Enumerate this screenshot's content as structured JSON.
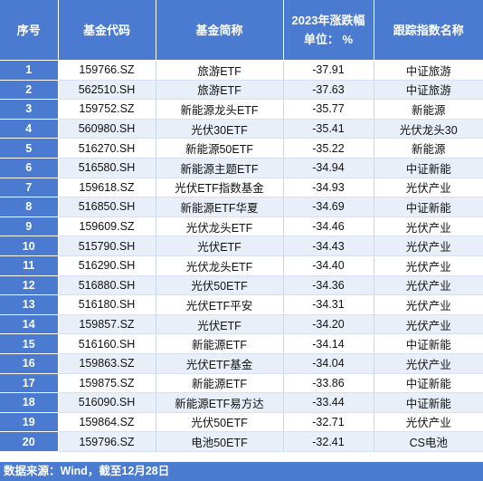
{
  "headers": {
    "index": "序号",
    "code": "基金代码",
    "name": "基金简称",
    "change_line1": "2023年涨跌幅",
    "change_line2": "单位： %",
    "index_name": "跟踪指数名称"
  },
  "rows": [
    {
      "no": "1",
      "code": "159766.SZ",
      "name": "旅游ETF",
      "change": "-37.91",
      "index": "中证旅游"
    },
    {
      "no": "2",
      "code": "562510.SH",
      "name": "旅游ETF",
      "change": "-37.63",
      "index": "中证旅游"
    },
    {
      "no": "3",
      "code": "159752.SZ",
      "name": "新能源龙头ETF",
      "change": "-35.77",
      "index": "新能源"
    },
    {
      "no": "4",
      "code": "560980.SH",
      "name": "光伏30ETF",
      "change": "-35.41",
      "index": "光伏龙头30"
    },
    {
      "no": "5",
      "code": "516270.SH",
      "name": "新能源50ETF",
      "change": "-35.22",
      "index": "新能源"
    },
    {
      "no": "6",
      "code": "516580.SH",
      "name": "新能源主题ETF",
      "change": "-34.94",
      "index": "中证新能"
    },
    {
      "no": "7",
      "code": "159618.SZ",
      "name": "光伏ETF指数基金",
      "change": "-34.93",
      "index": "光伏产业"
    },
    {
      "no": "8",
      "code": "516850.SH",
      "name": "新能源ETF华夏",
      "change": "-34.69",
      "index": "中证新能"
    },
    {
      "no": "9",
      "code": "159609.SZ",
      "name": "光伏龙头ETF",
      "change": "-34.46",
      "index": "光伏产业"
    },
    {
      "no": "10",
      "code": "515790.SH",
      "name": "光伏ETF",
      "change": "-34.43",
      "index": "光伏产业"
    },
    {
      "no": "11",
      "code": "516290.SH",
      "name": "光伏龙头ETF",
      "change": "-34.40",
      "index": "光伏产业"
    },
    {
      "no": "12",
      "code": "516880.SH",
      "name": "光伏50ETF",
      "change": "-34.36",
      "index": "光伏产业"
    },
    {
      "no": "13",
      "code": "516180.SH",
      "name": "光伏ETF平安",
      "change": "-34.31",
      "index": "光伏产业"
    },
    {
      "no": "14",
      "code": "159857.SZ",
      "name": "光伏ETF",
      "change": "-34.20",
      "index": "光伏产业"
    },
    {
      "no": "15",
      "code": "516160.SH",
      "name": "新能源ETF",
      "change": "-34.14",
      "index": "中证新能"
    },
    {
      "no": "16",
      "code": "159863.SZ",
      "name": "光伏ETF基金",
      "change": "-34.04",
      "index": "光伏产业"
    },
    {
      "no": "17",
      "code": "159875.SZ",
      "name": "新能源ETF",
      "change": "-33.86",
      "index": "中证新能"
    },
    {
      "no": "18",
      "code": "516090.SH",
      "name": "新能源ETF易方达",
      "change": "-33.44",
      "index": "中证新能"
    },
    {
      "no": "19",
      "code": "159864.SZ",
      "name": "光伏50ETF",
      "change": "-32.71",
      "index": "光伏产业"
    },
    {
      "no": "20",
      "code": "159796.SZ",
      "name": "电池50ETF",
      "change": "-32.41",
      "index": "CS电池"
    }
  ],
  "source": "数据来源：Wind，截至12月28日",
  "colors": {
    "header_blue": "#4a7bd0",
    "stripe": "#e9eff9"
  }
}
